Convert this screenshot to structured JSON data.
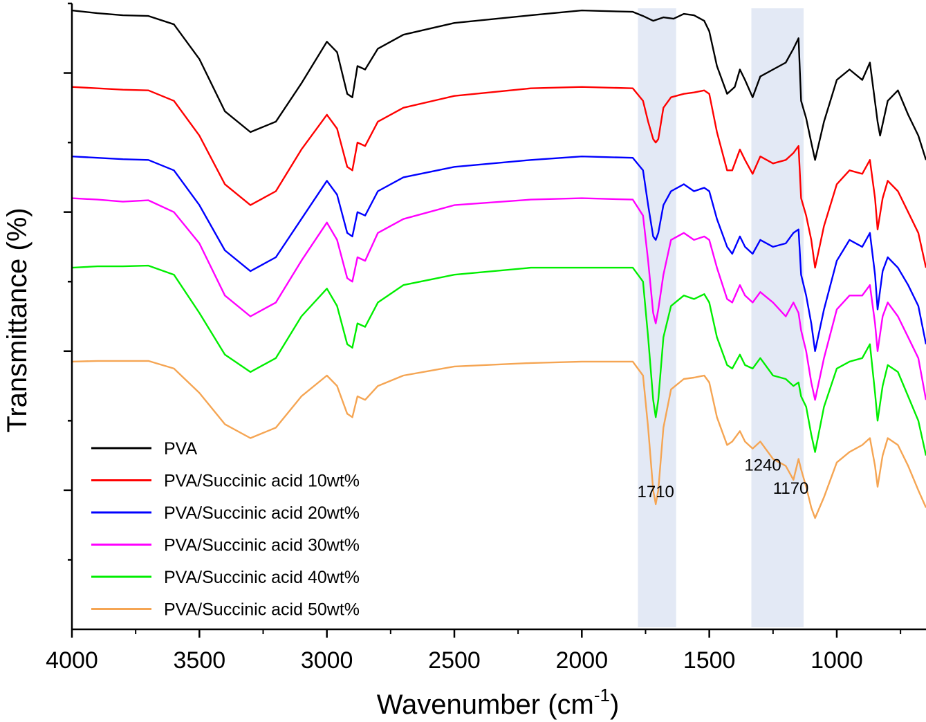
{
  "chart_data": {
    "type": "line",
    "xlabel": "Wavenumber (cm",
    "xlabel_sup": "-1",
    "xlabel_tail": ")",
    "ylabel": "Transmittance (%)",
    "xlim": [
      4000,
      650
    ],
    "x_reversed": true,
    "ylim": [
      0,
      9
    ],
    "y_tick_labels_shown": false,
    "x_ticks": [
      {
        "value": 4000,
        "label": "4000"
      },
      {
        "value": 3500,
        "label": "3500"
      },
      {
        "value": 3000,
        "label": "3000"
      },
      {
        "value": 2500,
        "label": "2500"
      },
      {
        "value": 2000,
        "label": "2000"
      },
      {
        "value": 1500,
        "label": "1500"
      },
      {
        "value": 1000,
        "label": "1000"
      }
    ],
    "highlight_bands": [
      {
        "from": 1780,
        "to": 1630,
        "color": "#e3e9f5"
      },
      {
        "from": 1335,
        "to": 1130,
        "color": "#e3e9f5"
      }
    ],
    "annotations": [
      {
        "text": "1710",
        "x": 1710,
        "y": 1.9
      },
      {
        "text": "1240",
        "x": 1290,
        "y": 2.28
      },
      {
        "text": "1170",
        "x": 1180,
        "y": 1.95
      }
    ],
    "legend_position": "bottom-left",
    "series": [
      {
        "name": "PVA",
        "color": "#000000",
        "x": [
          4000,
          3900,
          3800,
          3700,
          3600,
          3500,
          3400,
          3300,
          3200,
          3100,
          3000,
          2960,
          2920,
          2900,
          2880,
          2850,
          2800,
          2700,
          2500,
          2200,
          2000,
          1800,
          1760,
          1720,
          1680,
          1640,
          1600,
          1560,
          1520,
          1500,
          1470,
          1430,
          1400,
          1380,
          1360,
          1330,
          1300,
          1250,
          1200,
          1170,
          1150,
          1140,
          1120,
          1100,
          1085,
          1050,
          1000,
          950,
          900,
          870,
          840,
          830,
          800,
          760,
          720,
          680,
          650
        ],
        "y": [
          8.9,
          8.86,
          8.83,
          8.82,
          8.7,
          8.2,
          7.45,
          7.15,
          7.3,
          7.85,
          8.45,
          8.3,
          7.7,
          7.65,
          8.1,
          8.05,
          8.35,
          8.55,
          8.72,
          8.83,
          8.9,
          8.88,
          8.82,
          8.75,
          8.8,
          8.78,
          8.85,
          8.83,
          8.75,
          8.6,
          8.1,
          7.7,
          7.8,
          8.05,
          7.9,
          7.65,
          7.95,
          8.05,
          8.15,
          8.35,
          8.5,
          7.6,
          7.35,
          7.0,
          6.75,
          7.3,
          7.9,
          8.05,
          7.9,
          8.15,
          7.3,
          7.1,
          7.6,
          7.75,
          7.4,
          7.1,
          6.75
        ]
      },
      {
        "name": "PVA/Succinic acid 10wt%",
        "color": "#ff0000",
        "x": [
          4000,
          3900,
          3800,
          3700,
          3600,
          3500,
          3400,
          3300,
          3200,
          3100,
          3000,
          2960,
          2920,
          2900,
          2880,
          2850,
          2800,
          2700,
          2500,
          2200,
          2000,
          1800,
          1760,
          1740,
          1720,
          1710,
          1700,
          1680,
          1650,
          1600,
          1560,
          1520,
          1500,
          1470,
          1430,
          1410,
          1380,
          1360,
          1330,
          1300,
          1250,
          1200,
          1170,
          1150,
          1140,
          1120,
          1100,
          1085,
          1050,
          1000,
          950,
          900,
          870,
          850,
          840,
          820,
          800,
          760,
          720,
          680,
          650
        ],
        "y": [
          7.8,
          7.78,
          7.76,
          7.75,
          7.6,
          7.1,
          6.4,
          6.1,
          6.3,
          6.9,
          7.4,
          7.2,
          6.65,
          6.6,
          7.0,
          6.95,
          7.3,
          7.5,
          7.67,
          7.78,
          7.8,
          7.78,
          7.6,
          7.3,
          7.05,
          7.0,
          7.05,
          7.5,
          7.65,
          7.7,
          7.72,
          7.75,
          7.7,
          7.15,
          6.6,
          6.6,
          6.9,
          6.75,
          6.55,
          6.8,
          6.7,
          6.75,
          6.85,
          6.95,
          6.2,
          5.95,
          5.6,
          5.2,
          5.8,
          6.4,
          6.6,
          6.55,
          6.75,
          6.2,
          5.75,
          6.2,
          6.45,
          6.3,
          6.0,
          5.7,
          5.2
        ]
      },
      {
        "name": "PVA/Succinic acid 20wt%",
        "color": "#0000ff",
        "x": [
          4000,
          3900,
          3800,
          3700,
          3600,
          3500,
          3400,
          3300,
          3200,
          3100,
          3000,
          2960,
          2920,
          2900,
          2880,
          2850,
          2800,
          2700,
          2500,
          2200,
          2000,
          1800,
          1760,
          1740,
          1720,
          1710,
          1700,
          1680,
          1650,
          1600,
          1560,
          1520,
          1500,
          1470,
          1430,
          1410,
          1380,
          1360,
          1330,
          1300,
          1250,
          1200,
          1170,
          1150,
          1140,
          1120,
          1100,
          1085,
          1050,
          1000,
          950,
          900,
          870,
          850,
          840,
          820,
          800,
          760,
          720,
          680,
          650
        ],
        "y": [
          6.8,
          6.78,
          6.76,
          6.75,
          6.6,
          6.1,
          5.45,
          5.15,
          5.35,
          5.9,
          6.45,
          6.25,
          5.7,
          5.65,
          6.0,
          5.95,
          6.3,
          6.5,
          6.65,
          6.75,
          6.8,
          6.78,
          6.6,
          6.1,
          5.65,
          5.6,
          5.7,
          6.1,
          6.3,
          6.4,
          6.3,
          6.35,
          6.3,
          5.9,
          5.5,
          5.4,
          5.65,
          5.5,
          5.4,
          5.6,
          5.5,
          5.55,
          5.7,
          5.75,
          5.1,
          4.8,
          4.4,
          4.0,
          4.6,
          5.3,
          5.6,
          5.5,
          5.7,
          5.1,
          4.6,
          5.15,
          5.35,
          5.2,
          4.95,
          4.65,
          4.1
        ]
      },
      {
        "name": "PVA/Succinic acid 30wt%",
        "color": "#ff00ff",
        "x": [
          4000,
          3900,
          3800,
          3700,
          3600,
          3500,
          3400,
          3300,
          3200,
          3100,
          3000,
          2960,
          2920,
          2900,
          2880,
          2850,
          2800,
          2700,
          2500,
          2200,
          2000,
          1800,
          1760,
          1740,
          1720,
          1710,
          1700,
          1680,
          1650,
          1600,
          1560,
          1520,
          1500,
          1470,
          1430,
          1410,
          1380,
          1360,
          1330,
          1300,
          1250,
          1200,
          1170,
          1150,
          1140,
          1120,
          1100,
          1085,
          1050,
          1000,
          950,
          900,
          870,
          850,
          840,
          820,
          800,
          760,
          720,
          680,
          650
        ],
        "y": [
          6.2,
          6.18,
          6.15,
          6.17,
          6.0,
          5.55,
          4.8,
          4.5,
          4.7,
          5.3,
          5.85,
          5.6,
          5.05,
          5.0,
          5.35,
          5.3,
          5.7,
          5.9,
          6.1,
          6.18,
          6.2,
          6.18,
          5.95,
          5.3,
          4.55,
          4.4,
          4.6,
          5.1,
          5.6,
          5.7,
          5.6,
          5.65,
          5.6,
          5.2,
          4.75,
          4.7,
          4.95,
          4.8,
          4.7,
          4.85,
          4.7,
          4.5,
          4.7,
          4.55,
          4.3,
          4.0,
          3.55,
          3.3,
          3.9,
          4.6,
          4.8,
          4.8,
          4.95,
          4.4,
          4.0,
          4.5,
          4.7,
          4.5,
          4.2,
          3.9,
          3.3
        ]
      },
      {
        "name": "PVA/Succinic acid 40wt%",
        "color": "#00ee00",
        "x": [
          4000,
          3900,
          3800,
          3700,
          3600,
          3500,
          3400,
          3300,
          3200,
          3100,
          3000,
          2960,
          2920,
          2900,
          2880,
          2850,
          2800,
          2700,
          2500,
          2200,
          2000,
          1800,
          1760,
          1740,
          1720,
          1710,
          1700,
          1680,
          1650,
          1600,
          1560,
          1520,
          1500,
          1470,
          1430,
          1410,
          1380,
          1360,
          1330,
          1300,
          1250,
          1200,
          1170,
          1150,
          1140,
          1120,
          1100,
          1085,
          1050,
          1000,
          950,
          900,
          870,
          850,
          840,
          820,
          800,
          760,
          720,
          680,
          650
        ],
        "y": [
          5.2,
          5.22,
          5.22,
          5.23,
          5.1,
          4.55,
          3.95,
          3.7,
          3.9,
          4.5,
          4.9,
          4.65,
          4.1,
          4.05,
          4.4,
          4.35,
          4.7,
          4.95,
          5.1,
          5.2,
          5.2,
          5.2,
          5.0,
          4.2,
          3.3,
          3.05,
          3.3,
          4.2,
          4.65,
          4.8,
          4.75,
          4.82,
          4.7,
          4.2,
          3.8,
          3.75,
          3.95,
          3.8,
          3.75,
          3.9,
          3.65,
          3.6,
          3.5,
          3.55,
          3.35,
          3.2,
          2.8,
          2.55,
          3.2,
          3.75,
          3.85,
          3.9,
          4.1,
          3.4,
          3.0,
          3.5,
          3.8,
          3.7,
          3.35,
          3.0,
          2.5
        ]
      },
      {
        "name": "PVA/Succinic acid 50wt%",
        "color": "#f5a553",
        "x": [
          4000,
          3900,
          3800,
          3700,
          3600,
          3500,
          3400,
          3300,
          3200,
          3100,
          3000,
          2960,
          2920,
          2900,
          2880,
          2850,
          2800,
          2700,
          2500,
          2200,
          2000,
          1800,
          1760,
          1740,
          1720,
          1710,
          1700,
          1680,
          1650,
          1600,
          1560,
          1520,
          1500,
          1470,
          1430,
          1410,
          1380,
          1360,
          1330,
          1300,
          1250,
          1200,
          1170,
          1150,
          1140,
          1120,
          1100,
          1085,
          1050,
          1000,
          950,
          900,
          870,
          850,
          840,
          820,
          800,
          760,
          720,
          680,
          650
        ],
        "y": [
          3.85,
          3.86,
          3.86,
          3.86,
          3.75,
          3.4,
          2.95,
          2.75,
          2.9,
          3.35,
          3.65,
          3.5,
          3.1,
          3.05,
          3.35,
          3.3,
          3.5,
          3.65,
          3.78,
          3.83,
          3.85,
          3.85,
          3.65,
          2.9,
          2.0,
          1.8,
          2.0,
          2.9,
          3.45,
          3.6,
          3.62,
          3.65,
          3.55,
          3.05,
          2.65,
          2.7,
          2.85,
          2.7,
          2.6,
          2.7,
          2.45,
          2.35,
          2.15,
          2.45,
          2.3,
          2.05,
          1.75,
          1.6,
          1.9,
          2.4,
          2.55,
          2.65,
          2.75,
          2.35,
          2.05,
          2.5,
          2.75,
          2.65,
          2.35,
          2.0,
          1.75
        ]
      }
    ]
  }
}
